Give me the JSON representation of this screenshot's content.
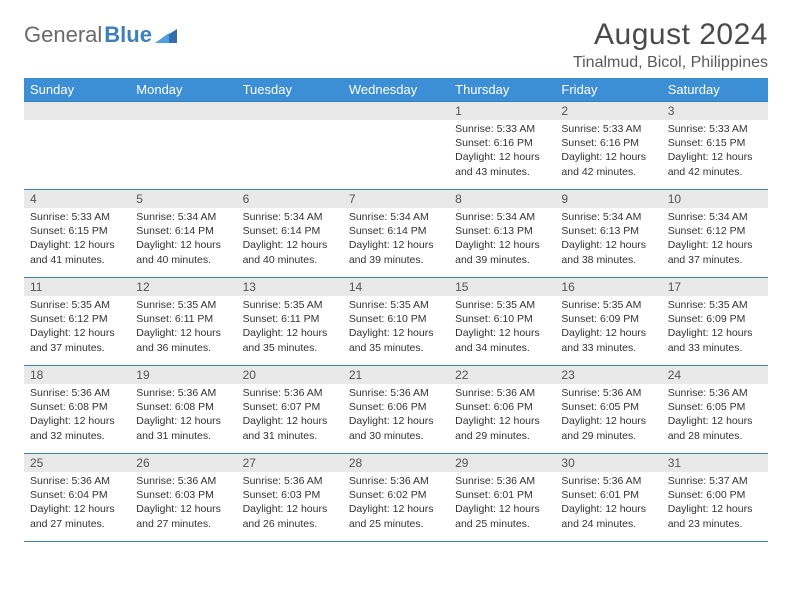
{
  "logo": {
    "part1": "General",
    "part2": "Blue"
  },
  "title": "August 2024",
  "location": "Tinalmud, Bicol, Philippines",
  "colors": {
    "header_bg": "#3c8fd4",
    "header_fg": "#ffffff",
    "rule": "#3c7fbf",
    "daynum_bg": "#e9e9e9",
    "text": "#333333",
    "logo_general": "#6a6a6a",
    "logo_blue": "#3c7fbf"
  },
  "day_headers": [
    "Sunday",
    "Monday",
    "Tuesday",
    "Wednesday",
    "Thursday",
    "Friday",
    "Saturday"
  ],
  "weeks": [
    [
      {
        "n": "",
        "sr": "",
        "ss": "",
        "dl": ""
      },
      {
        "n": "",
        "sr": "",
        "ss": "",
        "dl": ""
      },
      {
        "n": "",
        "sr": "",
        "ss": "",
        "dl": ""
      },
      {
        "n": "",
        "sr": "",
        "ss": "",
        "dl": ""
      },
      {
        "n": "1",
        "sr": "5:33 AM",
        "ss": "6:16 PM",
        "dl": "12 hours and 43 minutes."
      },
      {
        "n": "2",
        "sr": "5:33 AM",
        "ss": "6:16 PM",
        "dl": "12 hours and 42 minutes."
      },
      {
        "n": "3",
        "sr": "5:33 AM",
        "ss": "6:15 PM",
        "dl": "12 hours and 42 minutes."
      }
    ],
    [
      {
        "n": "4",
        "sr": "5:33 AM",
        "ss": "6:15 PM",
        "dl": "12 hours and 41 minutes."
      },
      {
        "n": "5",
        "sr": "5:34 AM",
        "ss": "6:14 PM",
        "dl": "12 hours and 40 minutes."
      },
      {
        "n": "6",
        "sr": "5:34 AM",
        "ss": "6:14 PM",
        "dl": "12 hours and 40 minutes."
      },
      {
        "n": "7",
        "sr": "5:34 AM",
        "ss": "6:14 PM",
        "dl": "12 hours and 39 minutes."
      },
      {
        "n": "8",
        "sr": "5:34 AM",
        "ss": "6:13 PM",
        "dl": "12 hours and 39 minutes."
      },
      {
        "n": "9",
        "sr": "5:34 AM",
        "ss": "6:13 PM",
        "dl": "12 hours and 38 minutes."
      },
      {
        "n": "10",
        "sr": "5:34 AM",
        "ss": "6:12 PM",
        "dl": "12 hours and 37 minutes."
      }
    ],
    [
      {
        "n": "11",
        "sr": "5:35 AM",
        "ss": "6:12 PM",
        "dl": "12 hours and 37 minutes."
      },
      {
        "n": "12",
        "sr": "5:35 AM",
        "ss": "6:11 PM",
        "dl": "12 hours and 36 minutes."
      },
      {
        "n": "13",
        "sr": "5:35 AM",
        "ss": "6:11 PM",
        "dl": "12 hours and 35 minutes."
      },
      {
        "n": "14",
        "sr": "5:35 AM",
        "ss": "6:10 PM",
        "dl": "12 hours and 35 minutes."
      },
      {
        "n": "15",
        "sr": "5:35 AM",
        "ss": "6:10 PM",
        "dl": "12 hours and 34 minutes."
      },
      {
        "n": "16",
        "sr": "5:35 AM",
        "ss": "6:09 PM",
        "dl": "12 hours and 33 minutes."
      },
      {
        "n": "17",
        "sr": "5:35 AM",
        "ss": "6:09 PM",
        "dl": "12 hours and 33 minutes."
      }
    ],
    [
      {
        "n": "18",
        "sr": "5:36 AM",
        "ss": "6:08 PM",
        "dl": "12 hours and 32 minutes."
      },
      {
        "n": "19",
        "sr": "5:36 AM",
        "ss": "6:08 PM",
        "dl": "12 hours and 31 minutes."
      },
      {
        "n": "20",
        "sr": "5:36 AM",
        "ss": "6:07 PM",
        "dl": "12 hours and 31 minutes."
      },
      {
        "n": "21",
        "sr": "5:36 AM",
        "ss": "6:06 PM",
        "dl": "12 hours and 30 minutes."
      },
      {
        "n": "22",
        "sr": "5:36 AM",
        "ss": "6:06 PM",
        "dl": "12 hours and 29 minutes."
      },
      {
        "n": "23",
        "sr": "5:36 AM",
        "ss": "6:05 PM",
        "dl": "12 hours and 29 minutes."
      },
      {
        "n": "24",
        "sr": "5:36 AM",
        "ss": "6:05 PM",
        "dl": "12 hours and 28 minutes."
      }
    ],
    [
      {
        "n": "25",
        "sr": "5:36 AM",
        "ss": "6:04 PM",
        "dl": "12 hours and 27 minutes."
      },
      {
        "n": "26",
        "sr": "5:36 AM",
        "ss": "6:03 PM",
        "dl": "12 hours and 27 minutes."
      },
      {
        "n": "27",
        "sr": "5:36 AM",
        "ss": "6:03 PM",
        "dl": "12 hours and 26 minutes."
      },
      {
        "n": "28",
        "sr": "5:36 AM",
        "ss": "6:02 PM",
        "dl": "12 hours and 25 minutes."
      },
      {
        "n": "29",
        "sr": "5:36 AM",
        "ss": "6:01 PM",
        "dl": "12 hours and 25 minutes."
      },
      {
        "n": "30",
        "sr": "5:36 AM",
        "ss": "6:01 PM",
        "dl": "12 hours and 24 minutes."
      },
      {
        "n": "31",
        "sr": "5:37 AM",
        "ss": "6:00 PM",
        "dl": "12 hours and 23 minutes."
      }
    ]
  ],
  "labels": {
    "sunrise": "Sunrise: ",
    "sunset": "Sunset: ",
    "daylight": "Daylight: "
  }
}
